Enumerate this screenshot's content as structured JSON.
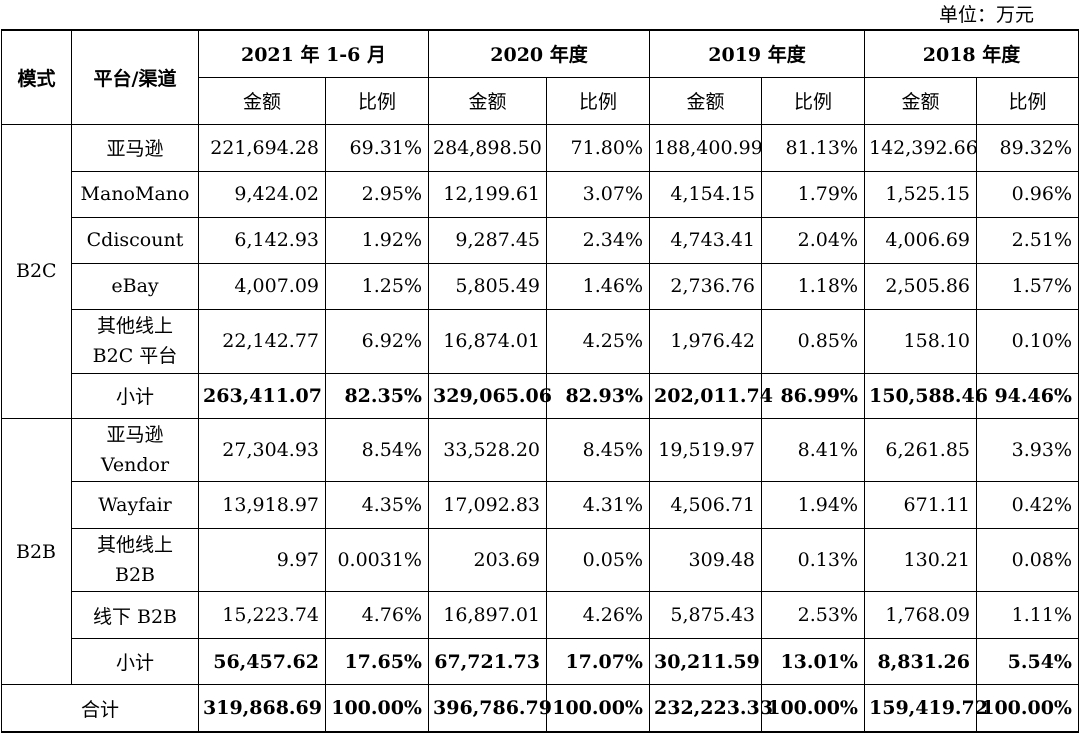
{
  "unit_label": "单位：万元",
  "header": {
    "mode": "模式",
    "platform": "平台/渠道",
    "periods": [
      "2021 年 1-6 月",
      "2020 年度",
      "2019 年度",
      "2018 年度"
    ],
    "amount": "金额",
    "ratio": "比例"
  },
  "b2c": {
    "mode": "B2C",
    "rows": [
      {
        "platform": "亚马逊",
        "cells": [
          "221,694.28",
          "69.31%",
          "284,898.50",
          "71.80%",
          "188,400.99",
          "81.13%",
          "142,392.66",
          "89.32%"
        ]
      },
      {
        "platform": "ManoMano",
        "cells": [
          "9,424.02",
          "2.95%",
          "12,199.61",
          "3.07%",
          "4,154.15",
          "1.79%",
          "1,525.15",
          "0.96%"
        ]
      },
      {
        "platform": "Cdiscount",
        "cells": [
          "6,142.93",
          "1.92%",
          "9,287.45",
          "2.34%",
          "4,743.41",
          "2.04%",
          "4,006.69",
          "2.51%"
        ]
      },
      {
        "platform": "eBay",
        "cells": [
          "4,007.09",
          "1.25%",
          "5,805.49",
          "1.46%",
          "2,736.76",
          "1.18%",
          "2,505.86",
          "1.57%"
        ]
      },
      {
        "platform_line1": "其他线上",
        "platform_line2": "B2C 平台",
        "cells": [
          "22,142.77",
          "6.92%",
          "16,874.01",
          "4.25%",
          "1,976.42",
          "0.85%",
          "158.10",
          "0.10%"
        ]
      }
    ],
    "subtotal": {
      "platform": "小计",
      "cells": [
        "263,411.07",
        "82.35%",
        "329,065.06",
        "82.93%",
        "202,011.74",
        "86.99%",
        "150,588.46",
        "94.46%"
      ]
    }
  },
  "b2b": {
    "mode": "B2B",
    "rows": [
      {
        "platform_line1": "亚马逊",
        "platform_line2": "Vendor",
        "cells": [
          "27,304.93",
          "8.54%",
          "33,528.20",
          "8.45%",
          "19,519.97",
          "8.41%",
          "6,261.85",
          "3.93%"
        ]
      },
      {
        "platform": "Wayfair",
        "cells": [
          "13,918.97",
          "4.35%",
          "17,092.83",
          "4.31%",
          "4,506.71",
          "1.94%",
          "671.11",
          "0.42%"
        ]
      },
      {
        "platform_line1": "其他线上",
        "platform_line2": "B2B",
        "cells": [
          "9.97",
          "0.0031%",
          "203.69",
          "0.05%",
          "309.48",
          "0.13%",
          "130.21",
          "0.08%"
        ]
      },
      {
        "platform": "线下 B2B",
        "cells": [
          "15,223.74",
          "4.76%",
          "16,897.01",
          "4.26%",
          "5,875.43",
          "2.53%",
          "1,768.09",
          "1.11%"
        ]
      }
    ],
    "subtotal": {
      "platform": "小计",
      "cells": [
        "56,457.62",
        "17.65%",
        "67,721.73",
        "17.07%",
        "30,211.59",
        "13.01%",
        "8,831.26",
        "5.54%"
      ]
    }
  },
  "total": {
    "label": "合计",
    "cells": [
      "319,868.69",
      "100.00%",
      "396,786.79",
      "100.00%",
      "232,223.33",
      "100.00%",
      "159,419.72",
      "100.00%"
    ]
  }
}
